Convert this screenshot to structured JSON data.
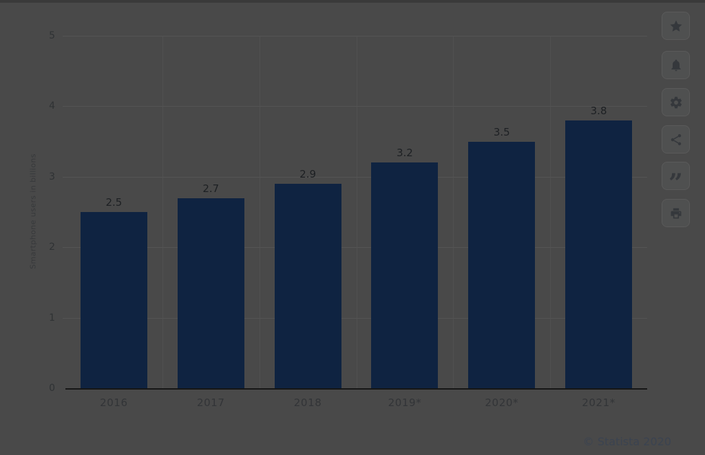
{
  "chart_data": {
    "type": "bar",
    "categories": [
      "2016",
      "2017",
      "2018",
      "2019*",
      "2020*",
      "2021*"
    ],
    "values": [
      2.5,
      2.7,
      2.9,
      3.2,
      3.5,
      3.8
    ],
    "value_labels": [
      "2.5",
      "2.7",
      "2.9",
      "3.2",
      "3.5",
      "3.8"
    ],
    "title": "",
    "xlabel": "",
    "ylabel": "Smartphone users in billions",
    "ylim": [
      0,
      5
    ],
    "yticks": [
      0,
      1,
      2,
      3,
      4,
      5
    ],
    "legend": "none",
    "grid": "horizontal lines at integer ticks plus faint vertical category separators",
    "bar_color": "#0f2341",
    "credit": "© Statista 2020"
  },
  "toolbar": {
    "buttons": [
      {
        "label": "favorite",
        "icon": "star-icon"
      },
      {
        "label": "notifications",
        "icon": "bell-icon"
      },
      {
        "label": "settings",
        "icon": "gear-icon"
      },
      {
        "label": "share",
        "icon": "share-icon"
      },
      {
        "label": "cite",
        "icon": "quote-icon"
      },
      {
        "label": "print",
        "icon": "printer-icon"
      }
    ]
  },
  "icons": {
    "quote_glyph": "”"
  },
  "colors": {
    "bar": "#0f2341",
    "dimmed_background": "#494949",
    "credit_text": "#3b4350"
  }
}
